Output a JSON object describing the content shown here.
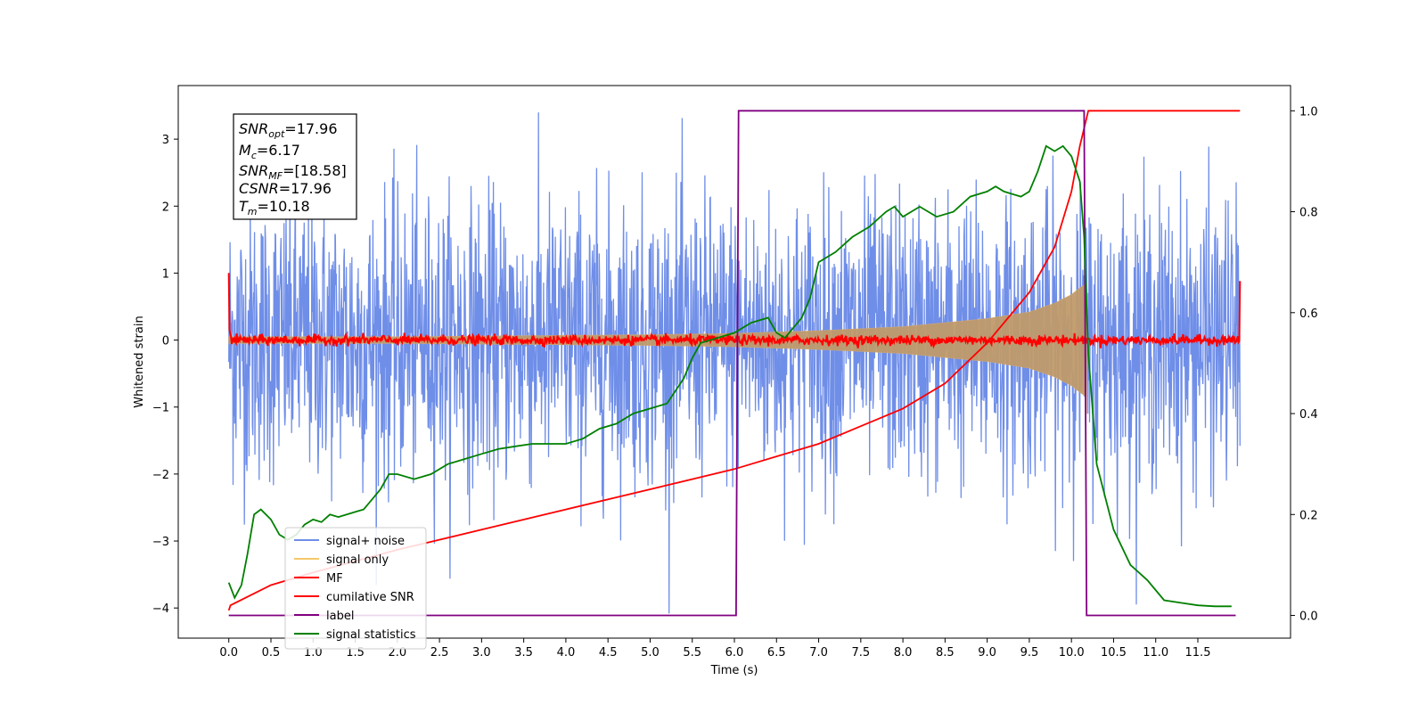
{
  "chart_data": {
    "type": "line",
    "xlabel": "Time (s)",
    "ylabel": "Whitened strain",
    "ylabel_right": "",
    "x_ticks": [
      0.0,
      0.5,
      1.0,
      1.5,
      2.0,
      2.5,
      3.0,
      3.5,
      4.0,
      4.5,
      5.0,
      5.5,
      6.0,
      6.5,
      7.0,
      7.5,
      8.0,
      8.5,
      9.0,
      9.5,
      10.0,
      10.5,
      11.0,
      11.5
    ],
    "x_tick_labels": [
      "0.0",
      "0.5",
      "1.0",
      "1.5",
      "2.0",
      "2.5",
      "3.0",
      "3.5",
      "4.0",
      "4.5",
      "5.0",
      "5.5",
      "6.0",
      "6.5",
      "7.0",
      "7.5",
      "8.0",
      "8.5",
      "9.0",
      "9.5",
      "10.0",
      "10.5",
      "11.0",
      "11.5"
    ],
    "xlim": [
      -0.6,
      12.6
    ],
    "y_left_ticks": [
      -4,
      -3,
      -2,
      -1,
      0,
      1,
      2,
      3
    ],
    "y_left_tick_labels": [
      "−4",
      "−3",
      "−2",
      "−1",
      "0",
      "1",
      "2",
      "3"
    ],
    "ylim_left": [
      -4.45,
      3.8
    ],
    "y_right_ticks": [
      0.0,
      0.2,
      0.4,
      0.6,
      0.8,
      1.0
    ],
    "y_right_tick_labels": [
      "0.0",
      "0.2",
      "0.4",
      "0.6",
      "0.8",
      "1.0"
    ],
    "ylim_right": [
      -0.045,
      1.05
    ],
    "legend_position": "lower-left",
    "legend": [
      {
        "label": "signal+ noise",
        "color": "#6f8ee8"
      },
      {
        "label": "signal only",
        "color": "#f5c86a"
      },
      {
        "label": "MF",
        "color": "#ff0000"
      },
      {
        "label": "cumilative SNR",
        "color": "#ff0000"
      },
      {
        "label": "label",
        "color": "#800080"
      },
      {
        "label": "signal statistics",
        "color": "#008000"
      }
    ],
    "annotations": [
      {
        "base": "SNR",
        "sub": "opt",
        "value": "=17.96"
      },
      {
        "base": "M",
        "sub": "c",
        "value": "=6.17"
      },
      {
        "base": "SNR",
        "sub": "MF",
        "value": "=[18.58]"
      },
      {
        "base": "CSNR",
        "sub": "",
        "value": "=17.96"
      },
      {
        "base": "T",
        "sub": "m",
        "value": "=10.18"
      }
    ],
    "series": [
      {
        "name": "signal+ noise",
        "axis": "left",
        "color": "#6f8ee8",
        "kind": "noise",
        "x_range": [
          0.0,
          12.0
        ],
        "amplitude_typical": 1.4,
        "amplitude_max": 3.4
      },
      {
        "name": "signal only",
        "axis": "left",
        "color": "#f5c86a",
        "kind": "chirp_envelope",
        "x": [
          0.0,
          1.0,
          2.0,
          3.0,
          4.0,
          5.0,
          6.0,
          7.0,
          8.0,
          9.0,
          9.5,
          9.8,
          10.0,
          10.1,
          10.18
        ],
        "envelope": [
          0.05,
          0.05,
          0.05,
          0.06,
          0.07,
          0.08,
          0.1,
          0.14,
          0.2,
          0.32,
          0.42,
          0.55,
          0.68,
          0.78,
          0.85
        ]
      },
      {
        "name": "MF",
        "axis": "left",
        "color": "#ff0000",
        "kind": "noise_small",
        "x_range": [
          0.0,
          12.0
        ],
        "start_value": 1.0,
        "end_value": 0.88,
        "amplitude_typical": 0.06
      },
      {
        "name": "cumilative SNR",
        "axis": "right",
        "color": "#ff0000",
        "x": [
          0.0,
          0.02,
          0.5,
          1.0,
          2.0,
          3.0,
          4.0,
          5.0,
          6.0,
          7.0,
          7.5,
          8.0,
          8.5,
          9.0,
          9.5,
          9.8,
          10.0,
          10.1,
          10.2,
          12.0
        ],
        "y": [
          0.01,
          0.02,
          0.06,
          0.085,
          0.13,
          0.17,
          0.21,
          0.25,
          0.29,
          0.34,
          0.375,
          0.41,
          0.46,
          0.54,
          0.64,
          0.73,
          0.84,
          0.93,
          1.0,
          1.0
        ]
      },
      {
        "name": "label",
        "axis": "right",
        "color": "#800080",
        "x": [
          0.0,
          6.02,
          6.05,
          10.15,
          10.18,
          11.95
        ],
        "y": [
          0.0,
          0.0,
          1.0,
          1.0,
          0.0,
          0.0
        ]
      },
      {
        "name": "signal statistics",
        "axis": "right",
        "color": "#008000",
        "x": [
          0.0,
          0.07,
          0.15,
          0.22,
          0.3,
          0.38,
          0.5,
          0.6,
          0.7,
          0.8,
          0.9,
          1.0,
          1.1,
          1.2,
          1.3,
          1.4,
          1.5,
          1.6,
          1.7,
          1.8,
          1.9,
          2.0,
          2.2,
          2.4,
          2.6,
          2.8,
          3.0,
          3.2,
          3.4,
          3.6,
          3.8,
          4.0,
          4.2,
          4.4,
          4.6,
          4.8,
          5.0,
          5.2,
          5.4,
          5.5,
          5.6,
          5.8,
          6.0,
          6.2,
          6.4,
          6.5,
          6.6,
          6.8,
          6.9,
          7.0,
          7.2,
          7.4,
          7.6,
          7.8,
          7.9,
          8.0,
          8.2,
          8.4,
          8.6,
          8.8,
          9.0,
          9.1,
          9.2,
          9.4,
          9.5,
          9.6,
          9.7,
          9.8,
          9.9,
          10.0,
          10.1,
          10.15,
          10.2,
          10.3,
          10.5,
          10.7,
          10.9,
          11.1,
          11.3,
          11.5,
          11.7,
          11.9
        ],
        "y": [
          0.065,
          0.035,
          0.06,
          0.12,
          0.2,
          0.21,
          0.19,
          0.16,
          0.15,
          0.16,
          0.18,
          0.19,
          0.185,
          0.2,
          0.195,
          0.2,
          0.205,
          0.21,
          0.23,
          0.25,
          0.28,
          0.28,
          0.27,
          0.28,
          0.3,
          0.31,
          0.32,
          0.33,
          0.335,
          0.34,
          0.34,
          0.34,
          0.35,
          0.37,
          0.38,
          0.4,
          0.41,
          0.42,
          0.47,
          0.51,
          0.54,
          0.55,
          0.56,
          0.58,
          0.59,
          0.56,
          0.55,
          0.59,
          0.63,
          0.7,
          0.72,
          0.75,
          0.77,
          0.8,
          0.81,
          0.79,
          0.81,
          0.79,
          0.8,
          0.83,
          0.84,
          0.85,
          0.84,
          0.83,
          0.84,
          0.88,
          0.93,
          0.92,
          0.93,
          0.91,
          0.86,
          0.75,
          0.52,
          0.3,
          0.17,
          0.1,
          0.07,
          0.03,
          0.025,
          0.02,
          0.018,
          0.018
        ]
      }
    ]
  }
}
